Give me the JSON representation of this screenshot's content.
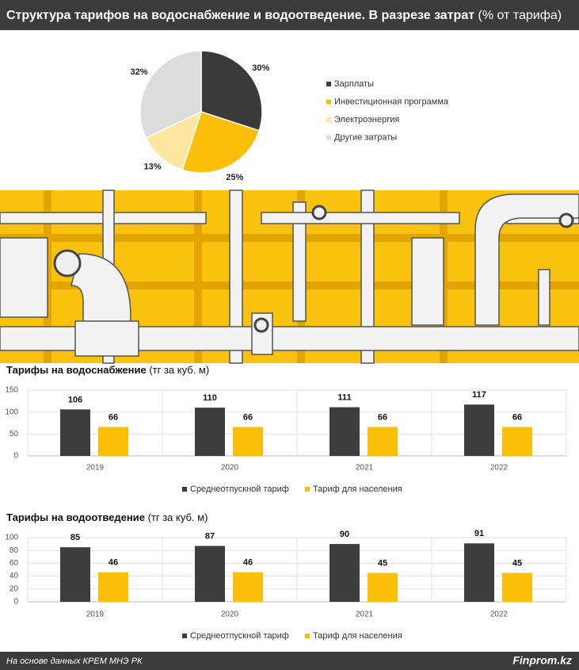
{
  "header": {
    "title": "Структура тарифов на водоснабжение и водоотведение. В разрезе затрат",
    "note": "(% от тарифа)"
  },
  "chart_data": [
    {
      "type": "pie",
      "categories": [
        "Зарплаты",
        "Инвестиционная программа",
        "Электроэнергия",
        "Другие затраты"
      ],
      "values": [
        30,
        25,
        13,
        32
      ],
      "value_labels": [
        "30%",
        "25%",
        "13%",
        "32%"
      ],
      "colors": [
        "#3a3a3a",
        "#fbbf0a",
        "#fde7a0",
        "#dcdcdc"
      ]
    },
    {
      "type": "bar",
      "title": "Тарифы на водоснабжение",
      "unit": "(тг за куб. м)",
      "categories": [
        "2019",
        "2020",
        "2021",
        "2022"
      ],
      "series": [
        {
          "name": "Среднеотпускной тариф",
          "color": "#3d3d3d",
          "values": [
            106,
            110,
            111,
            117
          ]
        },
        {
          "name": "Тариф для населения",
          "color": "#fbbf0a",
          "values": [
            66,
            66,
            66,
            66
          ]
        }
      ],
      "ylim": [
        0,
        150
      ],
      "yticks": [
        0,
        50,
        100,
        150
      ],
      "grid": true
    },
    {
      "type": "bar",
      "title": "Тарифы на водоотведение",
      "unit": "(тг за куб. м)",
      "categories": [
        "2019",
        "2020",
        "2021",
        "2022"
      ],
      "series": [
        {
          "name": "Среднеотпускной тариф",
          "color": "#3d3d3d",
          "values": [
            85,
            87,
            90,
            91
          ]
        },
        {
          "name": "Тариф для населения",
          "color": "#fbbf0a",
          "values": [
            46,
            46,
            45,
            45
          ]
        }
      ],
      "ylim": [
        0,
        100
      ],
      "yticks": [
        0,
        20,
        40,
        60,
        80,
        100
      ],
      "grid": true
    }
  ],
  "footer": {
    "source": "На основе данных КРЕМ МНЭ РК",
    "brand": "Finprom.kz"
  }
}
